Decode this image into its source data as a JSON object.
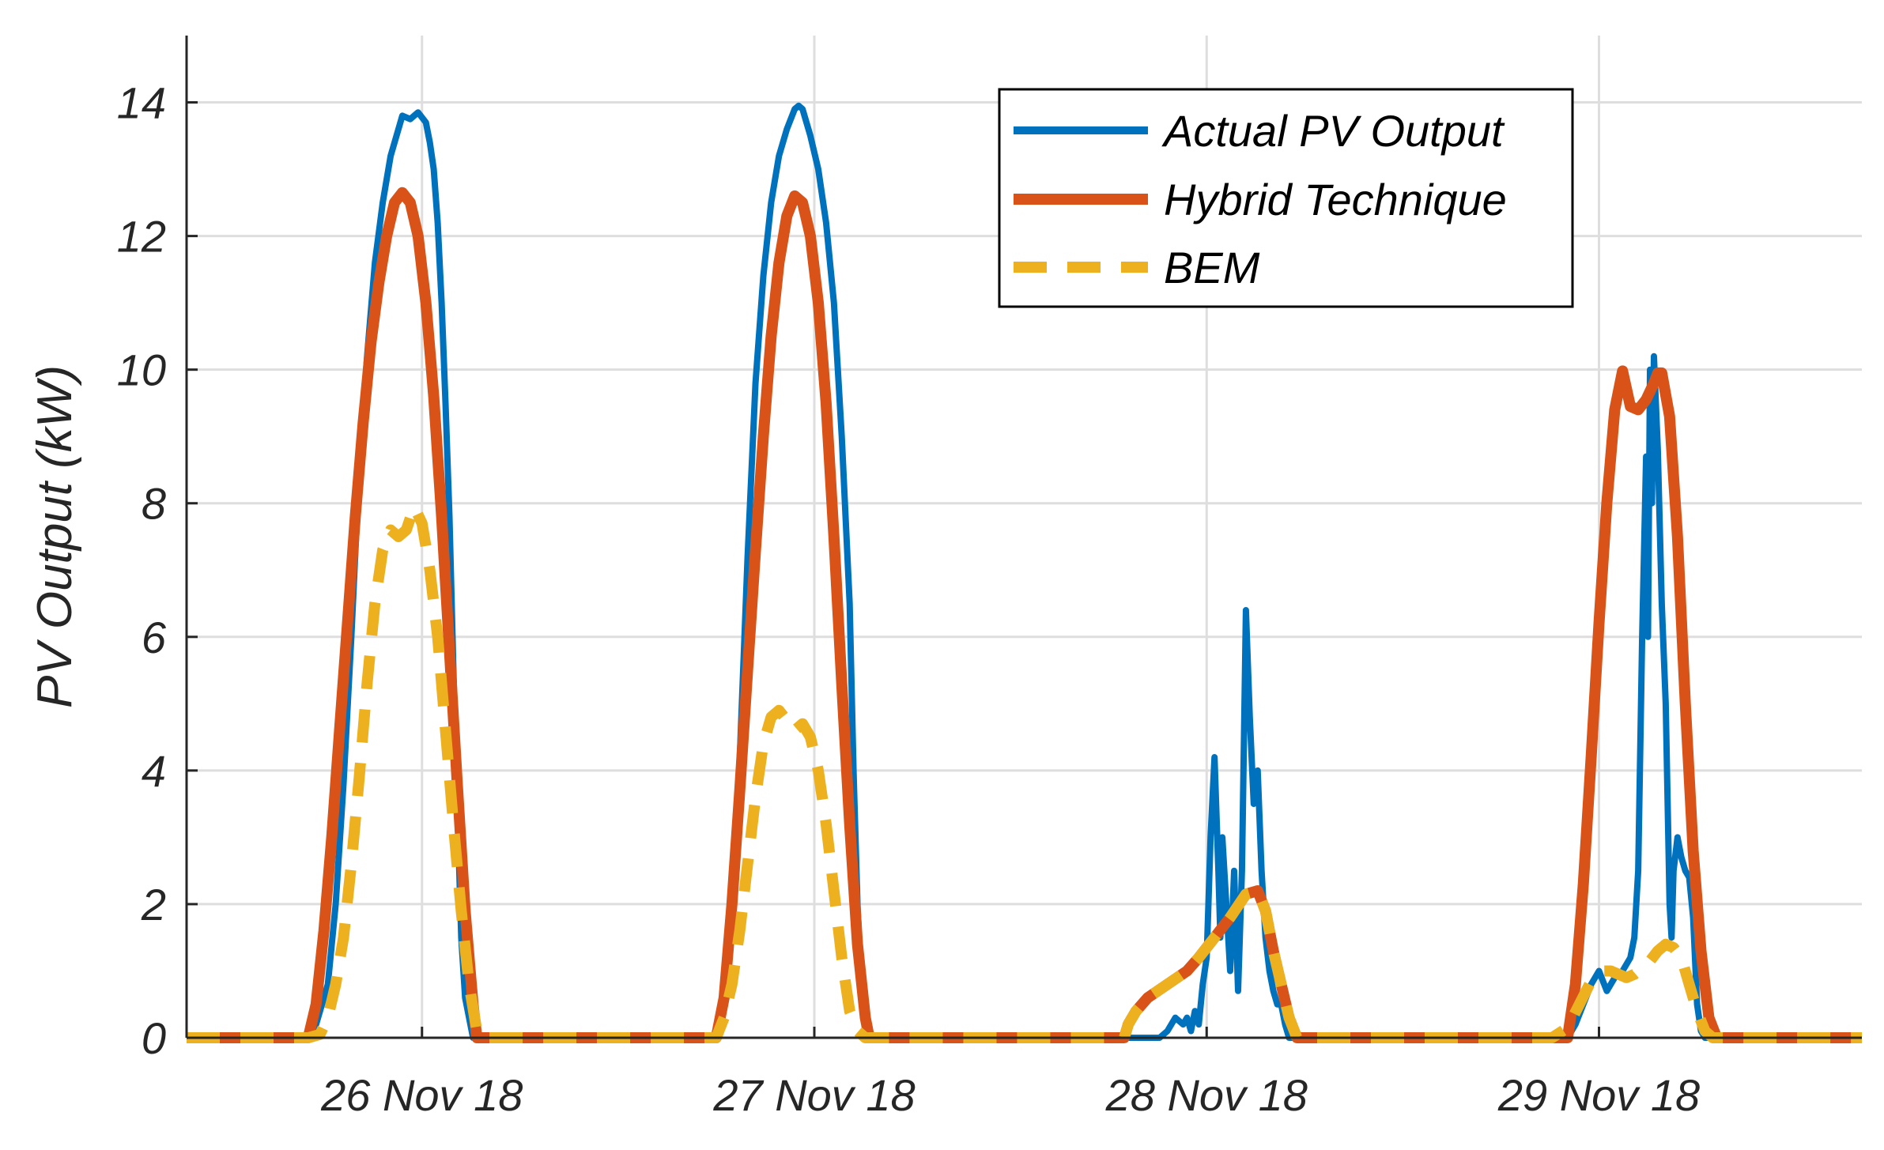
{
  "chart_data": {
    "type": "line",
    "title": "",
    "xlabel": "",
    "ylabel": "PV Output (kW)",
    "xlim": [
      -0.6,
      3.67
    ],
    "ylim": [
      0,
      15
    ],
    "yticks": [
      0,
      2,
      4,
      6,
      8,
      10,
      12,
      14
    ],
    "xticks": [
      0,
      1,
      2,
      3
    ],
    "xtick_labels": [
      "26 Nov 18",
      "27 Nov 18",
      "28 Nov 18",
      "29 Nov 18"
    ],
    "grid": true,
    "legend_position": "top-right",
    "colors": {
      "actual": "#0072BD",
      "hybrid": "#D95319",
      "bem": "#EDB120",
      "grid": "#dedede",
      "axis": "#262626"
    },
    "series": [
      {
        "name": "Actual PV Output",
        "style": "solid",
        "points": [
          [
            -0.6,
            0
          ],
          [
            -0.29,
            0
          ],
          [
            -0.27,
            0.2
          ],
          [
            -0.24,
            0.8
          ],
          [
            -0.22,
            2
          ],
          [
            -0.2,
            3.8
          ],
          [
            -0.18,
            6
          ],
          [
            -0.16,
            8.5
          ],
          [
            -0.14,
            10.2
          ],
          [
            -0.12,
            11.6
          ],
          [
            -0.1,
            12.5
          ],
          [
            -0.08,
            13.2
          ],
          [
            -0.06,
            13.6
          ],
          [
            -0.05,
            13.8
          ],
          [
            -0.03,
            13.75
          ],
          [
            -0.01,
            13.85
          ],
          [
            0.01,
            13.7
          ],
          [
            0.02,
            13.4
          ],
          [
            0.03,
            13.0
          ],
          [
            0.04,
            12.2
          ],
          [
            0.05,
            11.0
          ],
          [
            0.06,
            9.5
          ],
          [
            0.07,
            7.8
          ],
          [
            0.08,
            5.5
          ],
          [
            0.09,
            3.5
          ],
          [
            0.1,
            1.5
          ],
          [
            0.11,
            0.6
          ],
          [
            0.12,
            0.3
          ],
          [
            0.13,
            0
          ],
          [
            0.7,
            0
          ],
          [
            0.75,
            0
          ],
          [
            0.77,
            0.5
          ],
          [
            0.79,
            1.8
          ],
          [
            0.81,
            4.2
          ],
          [
            0.83,
            7.2
          ],
          [
            0.85,
            9.8
          ],
          [
            0.87,
            11.4
          ],
          [
            0.89,
            12.5
          ],
          [
            0.91,
            13.2
          ],
          [
            0.93,
            13.6
          ],
          [
            0.95,
            13.9
          ],
          [
            0.96,
            13.95
          ],
          [
            0.97,
            13.9
          ],
          [
            0.99,
            13.5
          ],
          [
            1.01,
            13.0
          ],
          [
            1.03,
            12.2
          ],
          [
            1.05,
            11.0
          ],
          [
            1.07,
            9.0
          ],
          [
            1.09,
            6.5
          ],
          [
            1.1,
            4.0
          ],
          [
            1.11,
            2.0
          ],
          [
            1.12,
            0.7
          ],
          [
            1.14,
            0
          ],
          [
            1.85,
            0
          ],
          [
            1.88,
            0
          ],
          [
            1.9,
            0.1
          ],
          [
            1.92,
            0.3
          ],
          [
            1.94,
            0.2
          ],
          [
            1.95,
            0.3
          ],
          [
            1.96,
            0.1
          ],
          [
            1.97,
            0.4
          ],
          [
            1.98,
            0.2
          ],
          [
            1.99,
            0.8
          ],
          [
            2.0,
            1.2
          ],
          [
            2.01,
            3.0
          ],
          [
            2.02,
            4.2
          ],
          [
            2.03,
            2.5
          ],
          [
            2.035,
            1.5
          ],
          [
            2.04,
            3.0
          ],
          [
            2.05,
            2.0
          ],
          [
            2.06,
            1.0
          ],
          [
            2.07,
            2.5
          ],
          [
            2.08,
            0.7
          ],
          [
            2.09,
            2.5
          ],
          [
            2.1,
            6.4
          ],
          [
            2.11,
            4.8
          ],
          [
            2.12,
            3.5
          ],
          [
            2.13,
            4.0
          ],
          [
            2.14,
            2.5
          ],
          [
            2.15,
            1.5
          ],
          [
            2.16,
            1.0
          ],
          [
            2.17,
            0.7
          ],
          [
            2.18,
            0.5
          ],
          [
            2.19,
            0.5
          ],
          [
            2.2,
            0.2
          ],
          [
            2.21,
            0
          ],
          [
            2.88,
            0
          ],
          [
            2.92,
            0
          ],
          [
            2.94,
            0.2
          ],
          [
            2.96,
            0.5
          ],
          [
            2.98,
            0.8
          ],
          [
            3.0,
            1.0
          ],
          [
            3.02,
            0.7
          ],
          [
            3.04,
            0.9
          ],
          [
            3.06,
            1.0
          ],
          [
            3.08,
            1.2
          ],
          [
            3.09,
            1.5
          ],
          [
            3.1,
            2.5
          ],
          [
            3.11,
            6.0
          ],
          [
            3.12,
            8.7
          ],
          [
            3.125,
            6.0
          ],
          [
            3.13,
            10.0
          ],
          [
            3.135,
            8.0
          ],
          [
            3.14,
            10.2
          ],
          [
            3.15,
            8.8
          ],
          [
            3.16,
            6.5
          ],
          [
            3.17,
            5.0
          ],
          [
            3.18,
            2.0
          ],
          [
            3.185,
            1.5
          ],
          [
            3.19,
            2.5
          ],
          [
            3.2,
            3.0
          ],
          [
            3.21,
            2.7
          ],
          [
            3.22,
            2.5
          ],
          [
            3.23,
            2.4
          ],
          [
            3.24,
            1.8
          ],
          [
            3.25,
            0.5
          ],
          [
            3.26,
            0.1
          ],
          [
            3.27,
            0
          ],
          [
            3.67,
            0
          ]
        ]
      },
      {
        "name": "Hybrid Technique",
        "style": "solid",
        "points": [
          [
            -0.6,
            0
          ],
          [
            -0.29,
            0
          ],
          [
            -0.27,
            0.5
          ],
          [
            -0.25,
            1.6
          ],
          [
            -0.23,
            3.0
          ],
          [
            -0.21,
            4.6
          ],
          [
            -0.19,
            6.2
          ],
          [
            -0.17,
            7.8
          ],
          [
            -0.15,
            9.2
          ],
          [
            -0.13,
            10.4
          ],
          [
            -0.11,
            11.3
          ],
          [
            -0.09,
            12.0
          ],
          [
            -0.07,
            12.5
          ],
          [
            -0.05,
            12.65
          ],
          [
            -0.03,
            12.5
          ],
          [
            -0.01,
            12.0
          ],
          [
            0.01,
            11.0
          ],
          [
            0.03,
            9.6
          ],
          [
            0.05,
            7.8
          ],
          [
            0.07,
            5.8
          ],
          [
            0.09,
            3.8
          ],
          [
            0.11,
            1.9
          ],
          [
            0.13,
            0.5
          ],
          [
            0.14,
            0
          ],
          [
            0.75,
            0
          ],
          [
            0.77,
            0.6
          ],
          [
            0.79,
            2.0
          ],
          [
            0.81,
            3.7
          ],
          [
            0.83,
            5.5
          ],
          [
            0.85,
            7.3
          ],
          [
            0.87,
            9.0
          ],
          [
            0.89,
            10.5
          ],
          [
            0.91,
            11.6
          ],
          [
            0.93,
            12.3
          ],
          [
            0.95,
            12.6
          ],
          [
            0.97,
            12.5
          ],
          [
            0.99,
            12.0
          ],
          [
            1.01,
            11.0
          ],
          [
            1.03,
            9.5
          ],
          [
            1.05,
            7.5
          ],
          [
            1.07,
            5.3
          ],
          [
            1.09,
            3.2
          ],
          [
            1.11,
            1.4
          ],
          [
            1.13,
            0.3
          ],
          [
            1.14,
            0
          ],
          [
            1.79,
            0
          ],
          [
            1.8,
            0.2
          ],
          [
            1.82,
            0.4
          ],
          [
            1.85,
            0.6
          ],
          [
            1.9,
            0.8
          ],
          [
            1.95,
            1.0
          ],
          [
            1.98,
            1.2
          ],
          [
            2.02,
            1.5
          ],
          [
            2.06,
            1.8
          ],
          [
            2.1,
            2.15
          ],
          [
            2.13,
            2.2
          ],
          [
            2.15,
            1.9
          ],
          [
            2.17,
            1.3
          ],
          [
            2.19,
            0.8
          ],
          [
            2.21,
            0.3
          ],
          [
            2.23,
            0
          ],
          [
            2.92,
            0
          ],
          [
            2.94,
            0.8
          ],
          [
            2.96,
            2.3
          ],
          [
            2.98,
            4.2
          ],
          [
            3.0,
            6.2
          ],
          [
            3.02,
            8.0
          ],
          [
            3.04,
            9.4
          ],
          [
            3.06,
            9.98
          ],
          [
            3.08,
            9.45
          ],
          [
            3.1,
            9.4
          ],
          [
            3.12,
            9.55
          ],
          [
            3.14,
            9.8
          ],
          [
            3.15,
            9.95
          ],
          [
            3.16,
            9.95
          ],
          [
            3.18,
            9.3
          ],
          [
            3.2,
            7.5
          ],
          [
            3.22,
            5.0
          ],
          [
            3.24,
            2.8
          ],
          [
            3.26,
            1.3
          ],
          [
            3.28,
            0.3
          ],
          [
            3.3,
            0
          ],
          [
            3.67,
            0
          ]
        ]
      },
      {
        "name": "BEM",
        "style": "dashed",
        "points": [
          [
            -0.6,
            0
          ],
          [
            -0.29,
            0
          ],
          [
            -0.26,
            0.05
          ],
          [
            -0.24,
            0.3
          ],
          [
            -0.22,
            0.8
          ],
          [
            -0.2,
            1.5
          ],
          [
            -0.18,
            2.6
          ],
          [
            -0.16,
            3.9
          ],
          [
            -0.14,
            5.3
          ],
          [
            -0.12,
            6.5
          ],
          [
            -0.1,
            7.3
          ],
          [
            -0.08,
            7.6
          ],
          [
            -0.06,
            7.5
          ],
          [
            -0.04,
            7.6
          ],
          [
            -0.02,
            7.95
          ],
          [
            0.0,
            7.7
          ],
          [
            0.02,
            7.0
          ],
          [
            0.04,
            6.0
          ],
          [
            0.06,
            4.6
          ],
          [
            0.08,
            3.2
          ],
          [
            0.1,
            1.9
          ],
          [
            0.12,
            0.8
          ],
          [
            0.14,
            0.1
          ],
          [
            0.15,
            0
          ],
          [
            0.75,
            0
          ],
          [
            0.77,
            0.3
          ],
          [
            0.79,
            0.8
          ],
          [
            0.81,
            1.6
          ],
          [
            0.83,
            2.6
          ],
          [
            0.85,
            3.6
          ],
          [
            0.87,
            4.4
          ],
          [
            0.89,
            4.8
          ],
          [
            0.91,
            4.9
          ],
          [
            0.93,
            4.75
          ],
          [
            0.95,
            4.6
          ],
          [
            0.97,
            4.7
          ],
          [
            0.99,
            4.5
          ],
          [
            1.01,
            4.0
          ],
          [
            1.03,
            3.2
          ],
          [
            1.05,
            2.2
          ],
          [
            1.07,
            1.2
          ],
          [
            1.09,
            0.4
          ],
          [
            1.11,
            0.1
          ],
          [
            1.13,
            0
          ],
          [
            1.79,
            0
          ],
          [
            1.8,
            0.2
          ],
          [
            1.82,
            0.4
          ],
          [
            1.85,
            0.6
          ],
          [
            1.9,
            0.8
          ],
          [
            1.95,
            1.0
          ],
          [
            1.98,
            1.2
          ],
          [
            2.02,
            1.5
          ],
          [
            2.06,
            1.8
          ],
          [
            2.1,
            2.15
          ],
          [
            2.13,
            2.2
          ],
          [
            2.15,
            1.9
          ],
          [
            2.17,
            1.3
          ],
          [
            2.19,
            0.8
          ],
          [
            2.21,
            0.3
          ],
          [
            2.23,
            0
          ],
          [
            2.88,
            0
          ],
          [
            2.92,
            0.15
          ],
          [
            2.95,
            0.5
          ],
          [
            2.98,
            0.85
          ],
          [
            3.01,
            1.0
          ],
          [
            3.03,
            1.0
          ],
          [
            3.05,
            0.95
          ],
          [
            3.07,
            0.9
          ],
          [
            3.09,
            0.95
          ],
          [
            3.11,
            1.05
          ],
          [
            3.13,
            1.15
          ],
          [
            3.15,
            1.3
          ],
          [
            3.17,
            1.4
          ],
          [
            3.19,
            1.35
          ],
          [
            3.21,
            1.2
          ],
          [
            3.23,
            0.8
          ],
          [
            3.25,
            0.4
          ],
          [
            3.27,
            0.1
          ],
          [
            3.29,
            0
          ],
          [
            3.67,
            0
          ]
        ]
      }
    ]
  }
}
